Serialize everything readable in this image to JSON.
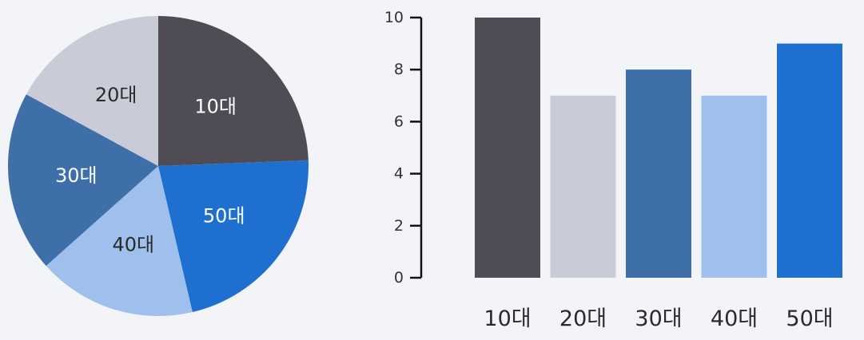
{
  "chart_data": [
    {
      "type": "pie",
      "categories": [
        "10대",
        "50대",
        "40대",
        "30대",
        "20대"
      ],
      "values": [
        10,
        9,
        7,
        8,
        7
      ],
      "colors": [
        "#4f4c55",
        "#1f6fd0",
        "#9fc0ec",
        "#3e6fa8",
        "#c9ccd6"
      ],
      "label_colors": [
        "#ffffff",
        "#ffffff",
        "#2a2a2a",
        "#ffffff",
        "#2a2a2a"
      ],
      "start": "12 o'clock",
      "direction": "clockwise",
      "legend": "none"
    },
    {
      "type": "bar",
      "categories": [
        "10대",
        "20대",
        "30대",
        "40대",
        "50대"
      ],
      "values": [
        10,
        7,
        8,
        7,
        9
      ],
      "colors": [
        "#4f4c55",
        "#c9ccd6",
        "#3e6fa8",
        "#9fc0ec",
        "#1f6fd0"
      ],
      "ylim": [
        0,
        10
      ],
      "yticks": [
        "0",
        "2",
        "4",
        "6",
        "8",
        "10"
      ],
      "grid": false,
      "legend": "none"
    }
  ]
}
